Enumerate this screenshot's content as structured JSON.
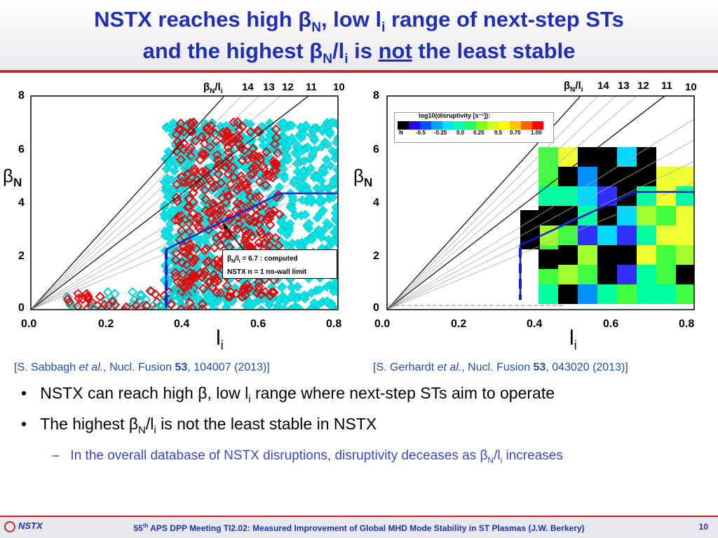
{
  "title": {
    "line1_a": "NSTX reaches high β",
    "line1_sub1": "N",
    "line1_b": ", low l",
    "line1_sub2": "i",
    "line1_c": " range of next-step STs",
    "line2_a": "and the highest β",
    "line2_sub1": "N",
    "line2_b": "/l",
    "line2_sub2": "i",
    "line2_c": " is ",
    "line2_u": "not",
    "line2_d": " the least stable"
  },
  "plots": {
    "y_label": "β",
    "y_label_sub": "N",
    "x_label": "l",
    "x_label_sub": "i",
    "ratio_label": "β",
    "ratio_label_sub1": "N",
    "ratio_label_mid": "/l",
    "ratio_label_sub2": "i",
    "ratio_values": [
      "14",
      "13",
      "12",
      "11",
      "10"
    ],
    "y_ticks": [
      "8",
      "6",
      "4",
      "2",
      "0"
    ],
    "x_ticks": [
      "0.0",
      "0.2",
      "0.4",
      "0.6",
      "0.8"
    ]
  },
  "left_plot": {
    "callout_line1_a": "β",
    "callout_line1_sub1": "N",
    "callout_line1_b": "/l",
    "callout_line1_sub2": "i",
    "callout_line1_c": " = 6.7 : computed",
    "callout_line2": "NSTX n = 1 no-wall limit",
    "citation_a": "[S. Sabbagh ",
    "citation_i": "et al.",
    "citation_b": ", Nucl. Fusion ",
    "citation_bold": "53",
    "citation_c": ", 104007 (2013)]"
  },
  "right_plot": {
    "legend_title": "log10(disruptivity [s⁻¹]):",
    "legend_ticks": [
      "N",
      "-0.5",
      "-0.25",
      "0.0",
      "0.25",
      "0.5",
      "0.75",
      "1.00"
    ],
    "citation_a": "[S. Gerhardt ",
    "citation_i": "et al.",
    "citation_b": ", Nucl. Fusion ",
    "citation_bold": "53",
    "citation_c": ", 043020 (2013)]"
  },
  "bullets": {
    "b1": "NSTX can reach high β, low l",
    "b1_sub": "i",
    "b1_end": " range where next-step STs aim to operate",
    "b2_a": "The highest β",
    "b2_sub1": "N",
    "b2_b": "/l",
    "b2_sub2": "i",
    "b2_c": " is not the least stable in NSTX",
    "s1_a": "In the overall database of NSTX disruptions, disruptivity deceases as β",
    "s1_sub1": "N",
    "s1_b": "/l",
    "s1_sub2": "i",
    "s1_c": " increases",
    "bullet_glyph": "•",
    "dash_glyph": "–"
  },
  "footer": {
    "logo": "NSTX",
    "text_a": "55",
    "text_sup": "th",
    "text_b": " APS DPP Meeting TI2.02: Measured Improvement of Global MHD Mode Stability in ST Plasmas (J.W. Berkery)",
    "page": "10"
  },
  "colors": {
    "title_blue": "#1f2fb5",
    "accent_red": "#c0282d",
    "scatter_red": "#e8000b",
    "scatter_cyan": "#00e6e6",
    "limit_blue": "#1020d0"
  }
}
